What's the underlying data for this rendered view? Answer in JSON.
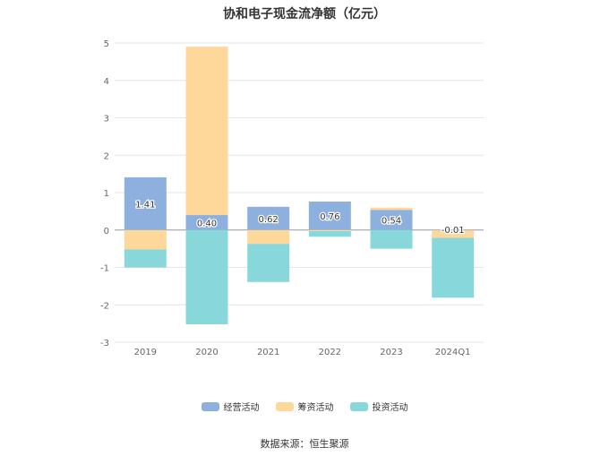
{
  "chart_data": {
    "type": "bar",
    "stacked": true,
    "title": "协和电子现金流净额（亿元）",
    "categories": [
      "2019",
      "2020",
      "2021",
      "2022",
      "2023",
      "2024Q1"
    ],
    "ylim": [
      -3,
      5
    ],
    "yticks": [
      "5",
      "4",
      "3",
      "2",
      "1",
      "0",
      "-1",
      "-2",
      "-3"
    ],
    "grid": true,
    "legend_position": "bottom",
    "series": [
      {
        "name": "经营活动",
        "color": "#8EB0DE",
        "values": [
          1.41,
          0.4,
          0.62,
          0.76,
          0.54,
          -0.01
        ],
        "labels": [
          "1.41",
          "0.40",
          "0.62",
          "0.76",
          "0.54",
          "-0.01"
        ]
      },
      {
        "name": "筹资活动",
        "color": "#FDD89A",
        "values": [
          -0.52,
          4.5,
          -0.37,
          -0.03,
          0.06,
          -0.2
        ]
      },
      {
        "name": "投资活动",
        "color": "#88D7DB",
        "values": [
          -0.48,
          -2.52,
          -1.02,
          -0.15,
          -0.5,
          -1.6
        ]
      }
    ]
  },
  "legend": {
    "items": [
      "经营活动",
      "筹资活动",
      "投资活动"
    ]
  },
  "source": "数据来源：恒生聚源"
}
